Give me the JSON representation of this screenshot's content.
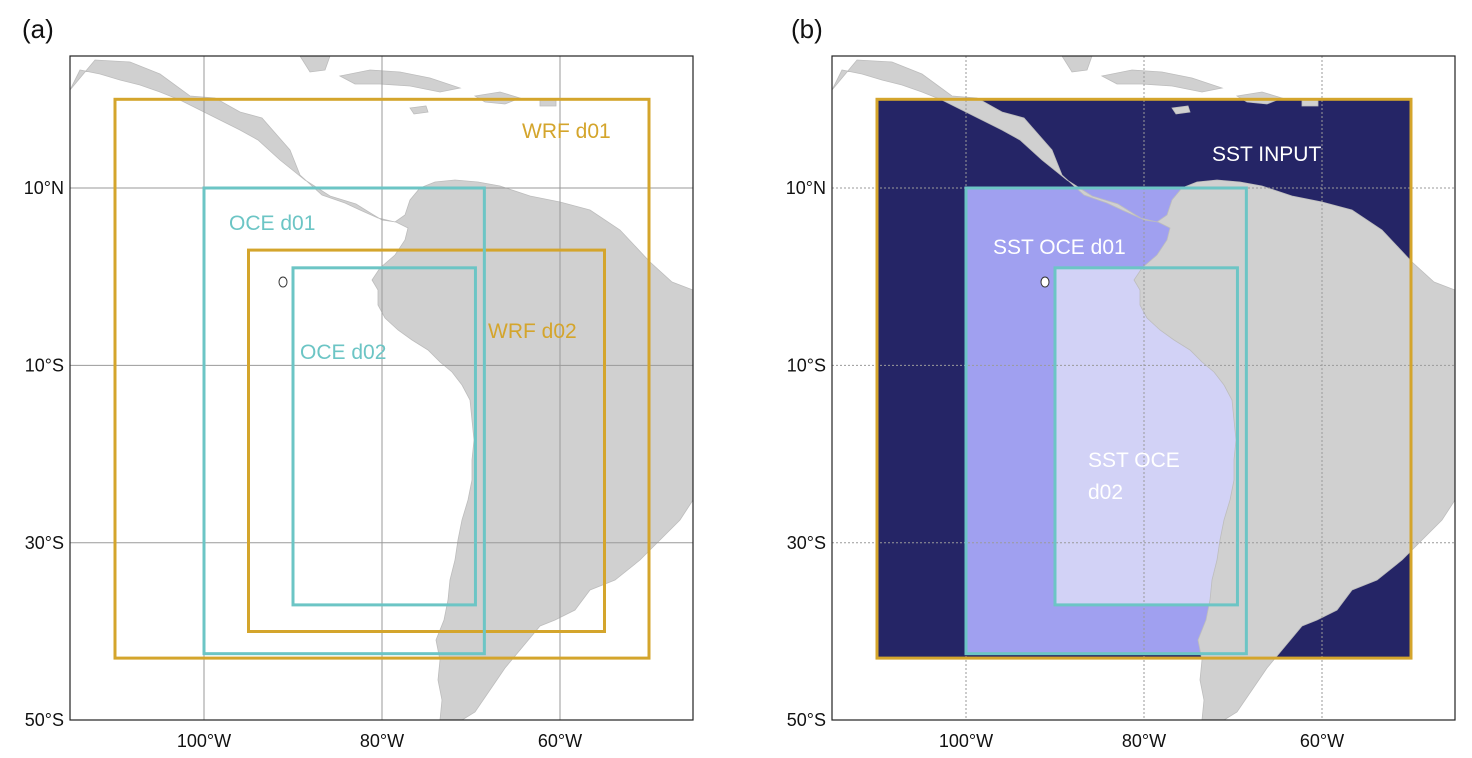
{
  "panels": {
    "a": {
      "label": "(a)"
    },
    "b": {
      "label": "(b)"
    }
  },
  "map": {
    "lon_range": [
      -115,
      -45
    ],
    "lat_range": [
      -50,
      25
    ],
    "lon_ticks": [
      {
        "value": -100,
        "label": "100°W"
      },
      {
        "value": -80,
        "label": "80°W"
      },
      {
        "value": -60,
        "label": "60°W"
      }
    ],
    "lat_ticks": [
      {
        "value": 10,
        "label": "10°N"
      },
      {
        "value": -10,
        "label": "10°S"
      },
      {
        "value": -30,
        "label": "30°S"
      },
      {
        "value": -50,
        "label": "50°S"
      }
    ]
  },
  "colors": {
    "wrf": "#d4a52c",
    "oce": "#6cc5c5",
    "land": "#d0d0d0",
    "sst_input": "#252566",
    "sst_oce_d01": "#a0a0f0",
    "sst_oce_d02": "#d2d2f6",
    "grid": "#9a9a9a"
  },
  "domains": {
    "wrf_d01": {
      "label": "WRF d01",
      "lon": [
        -110,
        -50
      ],
      "lat": [
        -43,
        20
      ]
    },
    "wrf_d02": {
      "label": "WRF d02",
      "lon": [
        -95,
        -55
      ],
      "lat": [
        -40,
        3
      ]
    },
    "oce_d01": {
      "label": "OCE d01",
      "lon": [
        -100,
        -68.5
      ],
      "lat": [
        -42.5,
        10
      ]
    },
    "oce_d02": {
      "label": "OCE d02",
      "lon": [
        -90,
        -69.5
      ],
      "lat": [
        -37,
        1
      ]
    }
  },
  "sst_labels": {
    "input": "SST INPUT",
    "oce_d01": "SST OCE d01",
    "oce_d02_line1": "SST OCE",
    "oce_d02_line2": "d02"
  }
}
